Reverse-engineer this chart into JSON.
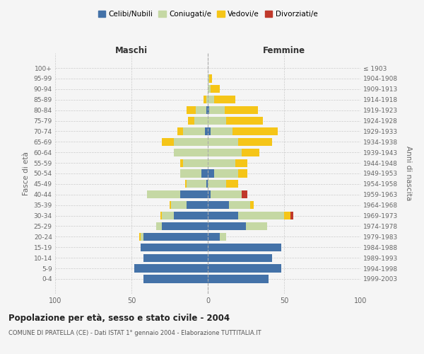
{
  "age_groups": [
    "0-4",
    "5-9",
    "10-14",
    "15-19",
    "20-24",
    "25-29",
    "30-34",
    "35-39",
    "40-44",
    "45-49",
    "50-54",
    "55-59",
    "60-64",
    "65-69",
    "70-74",
    "75-79",
    "80-84",
    "85-89",
    "90-94",
    "95-99",
    "100+"
  ],
  "birth_years": [
    "1999-2003",
    "1994-1998",
    "1989-1993",
    "1984-1988",
    "1979-1983",
    "1974-1978",
    "1969-1973",
    "1964-1968",
    "1959-1963",
    "1954-1958",
    "1949-1953",
    "1944-1948",
    "1939-1943",
    "1934-1938",
    "1929-1933",
    "1924-1928",
    "1919-1923",
    "1914-1918",
    "1909-1913",
    "1904-1908",
    "≤ 1903"
  ],
  "male_celibe": [
    42,
    48,
    42,
    44,
    42,
    30,
    22,
    14,
    18,
    1,
    4,
    0,
    0,
    0,
    2,
    0,
    1,
    0,
    0,
    0,
    0
  ],
  "male_coniugato": [
    0,
    0,
    0,
    0,
    2,
    4,
    8,
    10,
    22,
    13,
    14,
    16,
    22,
    22,
    14,
    9,
    7,
    1,
    0,
    0,
    0
  ],
  "male_vedovo": [
    0,
    0,
    0,
    0,
    1,
    0,
    1,
    1,
    0,
    1,
    0,
    2,
    0,
    8,
    4,
    4,
    6,
    2,
    0,
    0,
    0
  ],
  "male_divorziato": [
    0,
    0,
    0,
    0,
    0,
    0,
    0,
    0,
    0,
    0,
    0,
    0,
    0,
    0,
    0,
    0,
    0,
    0,
    0,
    0,
    0
  ],
  "female_nubile": [
    40,
    48,
    42,
    48,
    8,
    25,
    20,
    14,
    2,
    0,
    4,
    0,
    0,
    0,
    2,
    0,
    1,
    0,
    0,
    0,
    0
  ],
  "female_coniugata": [
    0,
    0,
    0,
    0,
    4,
    14,
    30,
    14,
    20,
    12,
    16,
    18,
    22,
    20,
    14,
    12,
    10,
    4,
    2,
    1,
    0
  ],
  "female_vedova": [
    0,
    0,
    0,
    0,
    0,
    0,
    4,
    2,
    0,
    8,
    6,
    8,
    12,
    22,
    30,
    24,
    22,
    14,
    6,
    2,
    0
  ],
  "female_divorziata": [
    0,
    0,
    0,
    0,
    0,
    0,
    2,
    0,
    4,
    0,
    0,
    0,
    0,
    0,
    0,
    0,
    0,
    0,
    0,
    0,
    0
  ],
  "color_celibe": "#4472a8",
  "color_coniugato": "#c5d8a4",
  "color_vedovo": "#f5c518",
  "color_divorziato": "#c0392b",
  "legend_labels": [
    "Celibi/Nubili",
    "Coniugati/e",
    "Vedovi/e",
    "Divorziati/e"
  ],
  "title": "Popolazione per età, sesso e stato civile - 2004",
  "subtitle": "COMUNE DI PRATELLA (CE) - Dati ISTAT 1° gennaio 2004 - Elaborazione TUTTITALIA.IT",
  "label_maschi": "Maschi",
  "label_femmine": "Femmine",
  "ylabel_left": "Fasce di età",
  "ylabel_right": "Anni di nascita",
  "xlim": 100,
  "bg_color": "#f5f5f5",
  "plot_bg": "#f5f5f5",
  "grid_color": "#cccccc",
  "text_color": "#666666"
}
